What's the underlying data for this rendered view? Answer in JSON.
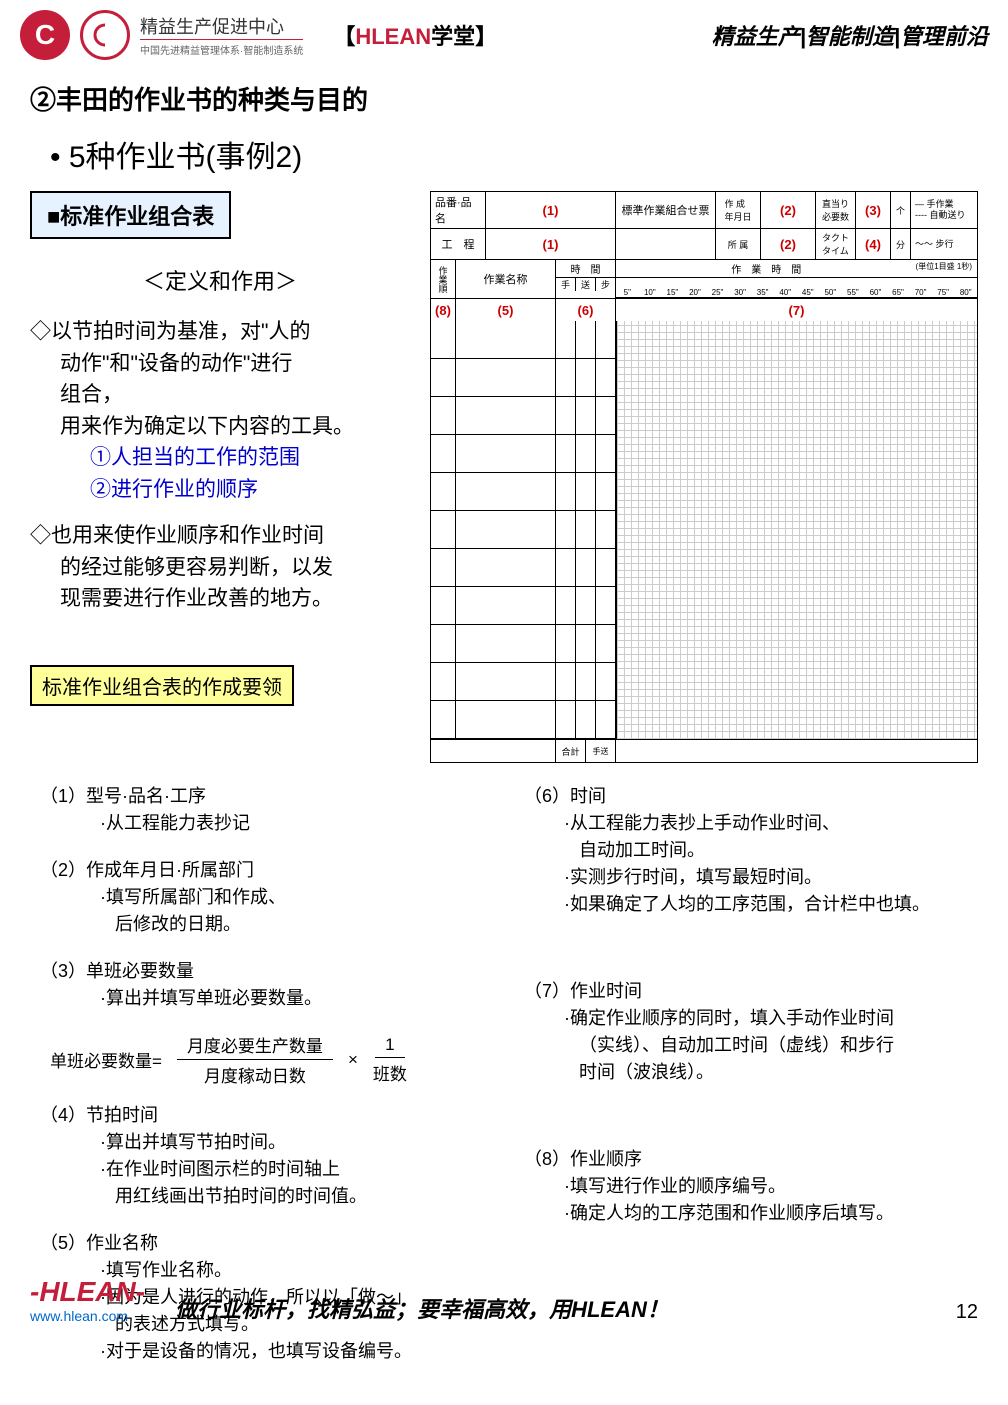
{
  "header": {
    "logo_c": "C",
    "center_name": "精益生产促进中心",
    "center_sub": "中国先进精益管理体系·智能制造系统",
    "badge_bracket_l": "【",
    "badge_hlean": "HLEAN",
    "badge_school": "学堂",
    "badge_bracket_r": "】",
    "right_text": "精益生产|智能制造|管理前沿"
  },
  "title": "②丰田的作业书的种类与目的",
  "subtitle": "• 5种作业书(事例2)",
  "box_title": "■标准作业组合表",
  "def_title": "＜定义和作用＞",
  "body1_line1": "◇以节拍时间为基准，对\"人的",
  "body1_line2": "动作\"和\"设备的动作\"进行",
  "body1_line3": "组合，",
  "body1_line4": "用来作为确定以下内容的工具。",
  "body1_blue1": "①人担当的工作的范围",
  "body1_blue2": "②进行作业的顺序",
  "body2_line1": "◇也用来使作业顺序和作业时间",
  "body2_line2": "的经过能够更容易判断，以发",
  "body2_line3": "现需要进行作业改善的地方。",
  "yellow_box": "标准作业组合表的作成要领",
  "form": {
    "h1": "品番·品名",
    "h2": "工　程",
    "h3": "作業名称",
    "h4": "時　間",
    "h5": "作　業　時　間",
    "h6": "標準作業組合せ票",
    "h7": "作 成\n年月日",
    "h8": "所 属",
    "h9": "直当り\n必要数",
    "h10": "タクト\nタイム",
    "h11": "个",
    "h12": "分",
    "h13": "手",
    "h14": "送",
    "h15": "步",
    "h16": "作業順",
    "unit": "(単位1目盛 1秒)",
    "legend1": "手作業",
    "legend2": "自動送り",
    "legend3": "步行",
    "sum": "合計",
    "ticks": [
      "5\"",
      "10\"",
      "15\"",
      "20\"",
      "25\"",
      "30\"",
      "35\"",
      "40\"",
      "45\"",
      "50\"",
      "55\"",
      "60\"",
      "65\"",
      "70\"",
      "75\"",
      "80\""
    ],
    "r1": "(1)",
    "r2": "(2)",
    "r3": "(3)",
    "r4": "(4)",
    "r5": "(5)",
    "r6": "(6)",
    "r7": "(7)",
    "r8": "(8)"
  },
  "notes": {
    "n1_title": "（1）型号·品名·工序",
    "n1_sub": "·从工程能力表抄记",
    "n2_title": "（2）作成年月日·所属部门",
    "n2_sub1": "·填写所属部门和作成、",
    "n2_sub2": "后修改的日期。",
    "n3_title": "（3）单班必要数量",
    "n3_sub": "·算出并填写单班必要数量。",
    "formula_label": "单班必要数量=",
    "formula_top1": "月度必要生产数量",
    "formula_bot1": "月度稼动日数",
    "formula_mult": "×",
    "formula_top2": "1",
    "formula_bot2": "班数",
    "n4_title": "（4）节拍时间",
    "n4_sub1": "·算出并填写节拍时间。",
    "n4_sub2": "·在作业时间图示栏的时间轴上",
    "n4_sub3": "用红线画出节拍时间的时间值。",
    "n5_title": "（5）作业名称",
    "n5_sub1": "·填写作业名称。",
    "n5_sub2": "·因为是人进行的动作，所以以「做～」",
    "n5_sub3": "的表述方式填写。",
    "n5_sub4": "·对于是设备的情况，也填写设备编号。",
    "n6_title": "（6）时间",
    "n6_sub1": "·从工程能力表抄上手动作业时间、",
    "n6_sub2": "自动加工时间。",
    "n6_sub3": "·实测步行时间，填写最短时间。",
    "n6_sub4": "·如果确定了人均的工序范围，合计栏中也填。",
    "n7_title": "（7）作业时间",
    "n7_sub1": "·确定作业顺序的同时，填入手动作业时间",
    "n7_sub2": "（实线）、自动加工时间（虚线）和步行",
    "n7_sub3": "时间（波浪线）。",
    "n8_title": "（8）作业顺序",
    "n8_sub1": "·填写进行作业的顺序编号。",
    "n8_sub2": "·确定人均的工序范围和作业顺序后填写。"
  },
  "footer": {
    "logo": "-HLEAN-",
    "url": "www.hlean.com",
    "slogan": "做行业标杆，找精弘益；要幸福高效，用HLEAN！",
    "page": "12"
  }
}
